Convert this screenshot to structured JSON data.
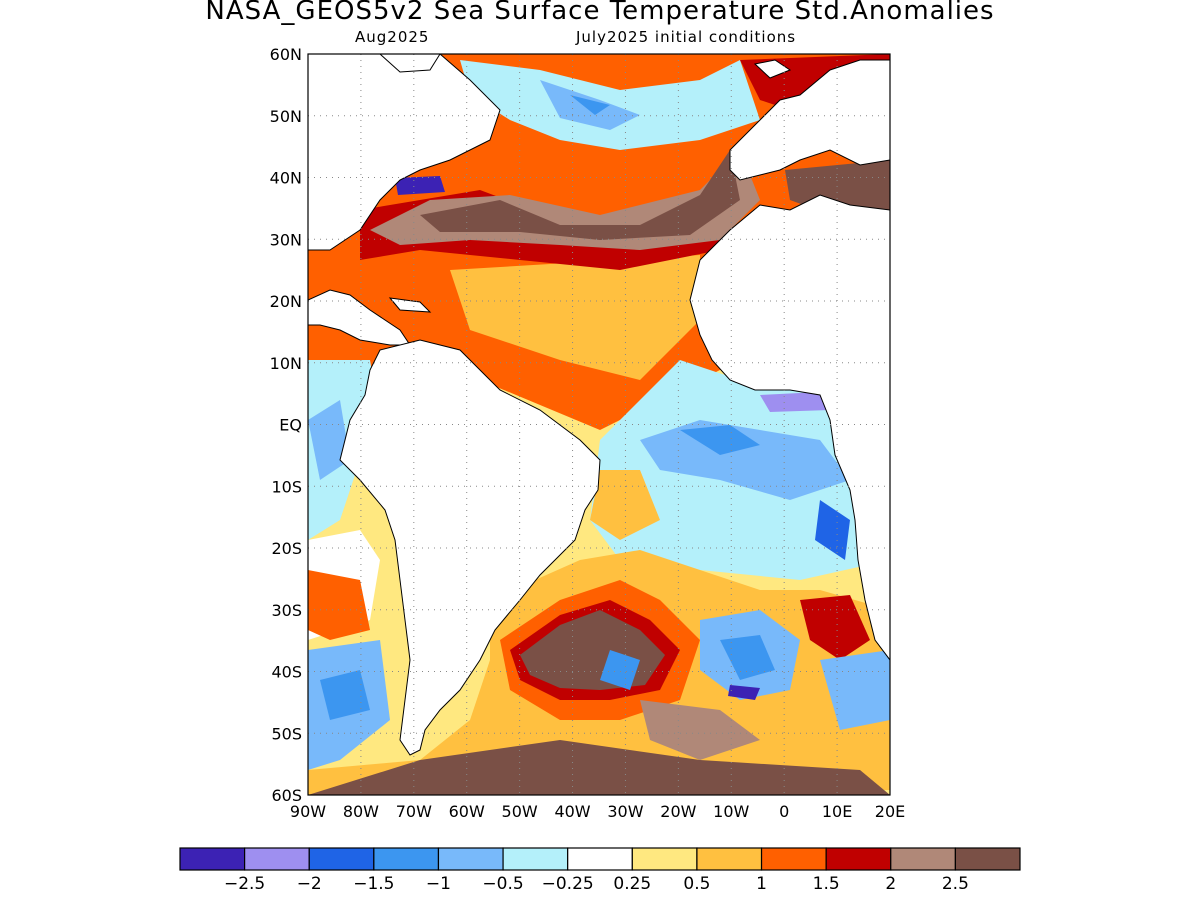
{
  "title": "NASA_GEOS5v2 Sea Surface Temperature Std.Anomalies",
  "subtitle_left": "Aug2025",
  "subtitle_right": "July2025 initial conditions",
  "map": {
    "lon_range": [
      -90,
      20
    ],
    "lat_range": [
      -60,
      60
    ],
    "lat_labels": [
      "60N",
      "50N",
      "40N",
      "30N",
      "20N",
      "10N",
      "EQ",
      "10S",
      "20S",
      "30S",
      "40S",
      "50S",
      "60S"
    ],
    "lon_labels": [
      "90W",
      "80W",
      "70W",
      "60W",
      "50W",
      "40W",
      "30W",
      "20W",
      "10W",
      "0",
      "10E",
      "20E"
    ],
    "grid": "dotted"
  },
  "colorbar": {
    "colors": [
      "#3c22b4",
      "#9e8ff0",
      "#1f64e6",
      "#3c96f0",
      "#78b9fa",
      "#b4f0fa",
      "#ffffff",
      "#ffe880",
      "#ffc040",
      "#ff6000",
      "#c00000",
      "#b08878",
      "#7a5046"
    ],
    "labels": [
      "-2.5",
      "-2",
      "-1.5",
      "-1",
      "-0.5",
      "-0.25",
      "0.25",
      "0.5",
      "1",
      "1.5",
      "2",
      "2.5"
    ]
  }
}
